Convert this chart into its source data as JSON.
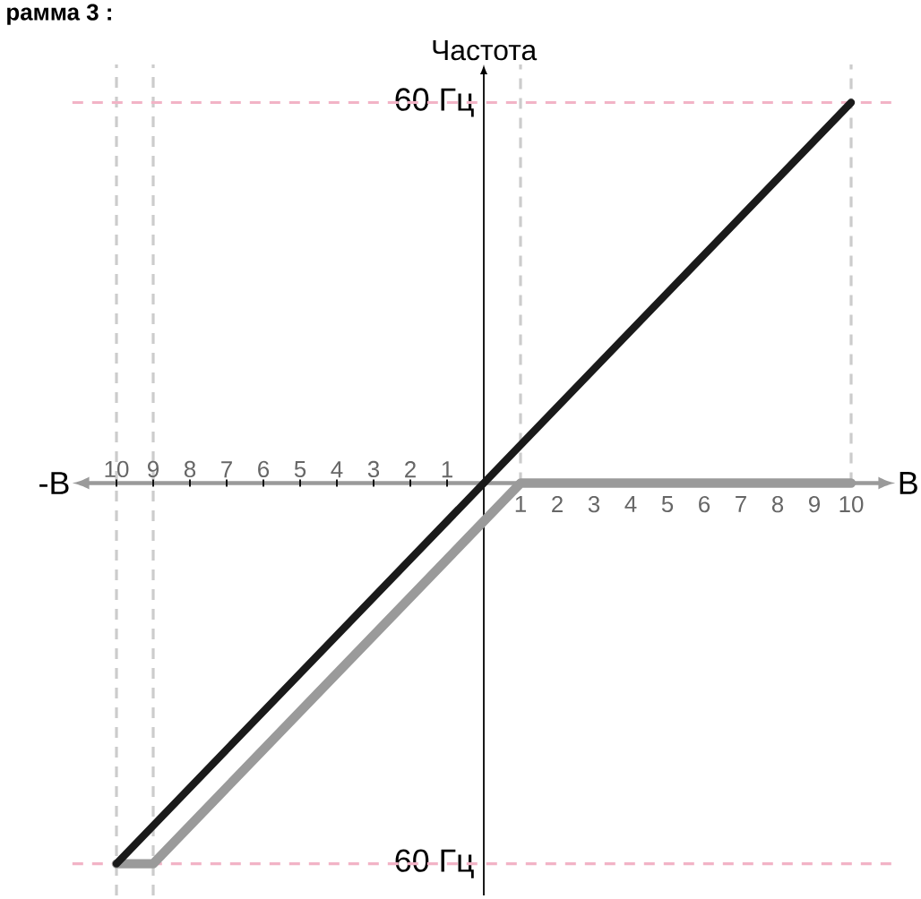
{
  "chart_data": {
    "type": "line",
    "title": "рамма 3 :",
    "xlabel": "В",
    "ylabel": "Частота",
    "annotations": [
      "-В"
    ],
    "xlim": [
      -11.2,
      11.2
    ],
    "ylim": [
      -65,
      66
    ],
    "x2lim": [
      -11.2,
      11.2
    ],
    "xticks": [
      1,
      2,
      3,
      4,
      5,
      6,
      7,
      8,
      9,
      10
    ],
    "x2ticks": [
      {
        "value": -10,
        "label": "10"
      },
      {
        "value": -9,
        "label": "9"
      },
      {
        "value": -8,
        "label": "8"
      },
      {
        "value": -7,
        "label": "7"
      },
      {
        "value": -6,
        "label": "6"
      },
      {
        "value": -5,
        "label": "5"
      },
      {
        "value": -4,
        "label": "4"
      },
      {
        "value": -3,
        "label": "3"
      },
      {
        "value": -2,
        "label": "2"
      },
      {
        "value": -1,
        "label": "1"
      }
    ],
    "yticks": [
      {
        "value": 60,
        "label": "60 Гц"
      },
      {
        "value": -60,
        "label": "60 Гц"
      }
    ],
    "series": [
      {
        "color": "#9a9a9a",
        "x": [
          -10,
          -9,
          1,
          10
        ],
        "values": [
          -60,
          -60,
          0,
          0
        ]
      },
      {
        "color": "#1a1a1a",
        "x": [
          -10,
          10
        ],
        "values": [
          -60,
          60
        ]
      }
    ],
    "ref_lines": [
      {
        "axis": "x",
        "value": -10,
        "color": "#cccccc",
        "line_style": "dashed"
      },
      {
        "axis": "x",
        "value": -9,
        "color": "#cccccc",
        "line_style": "dashed"
      },
      {
        "axis": "x",
        "value": 1,
        "color": "#cccccc",
        "line_style": "dashed"
      },
      {
        "axis": "x",
        "value": 10,
        "color": "#cccccc",
        "line_style": "dashed"
      },
      {
        "axis": "y",
        "value": 60,
        "color": "#f2b3c6",
        "line_style": "dashed"
      },
      {
        "axis": "y",
        "value": -60,
        "color": "#f2b3c6",
        "line_style": "dashed"
      }
    ],
    "marker": "none",
    "line_style": "solid"
  }
}
